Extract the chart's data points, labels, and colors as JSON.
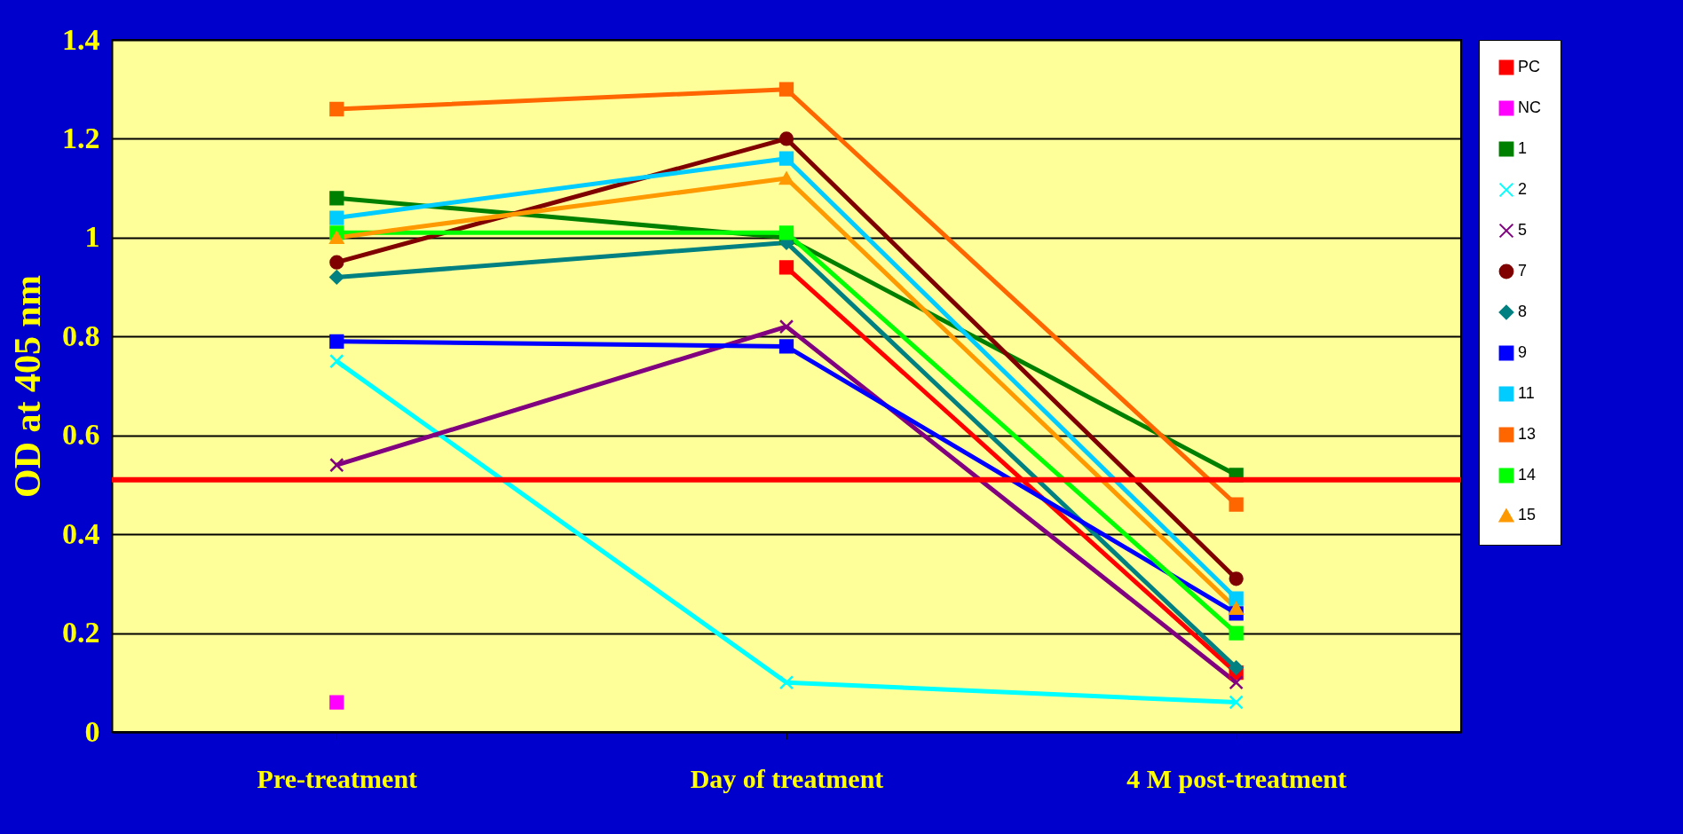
{
  "chart_data": {
    "type": "line",
    "ylabel": "OD at 405 nm",
    "categories": [
      "Pre-treatment",
      "Day of treatment",
      "4 M post-treatment"
    ],
    "ylim": [
      0,
      1.4
    ],
    "yticks": [
      0,
      0.2,
      0.4,
      0.6,
      0.8,
      1,
      1.2,
      1.4
    ],
    "grid": "y",
    "legend": "right",
    "line_style": "solid",
    "series": [
      {
        "name": "PC",
        "color": "#ff0000",
        "marker": "square",
        "values": [
          null,
          0.94,
          0.12
        ]
      },
      {
        "name": "NC",
        "color": "#ff00ff",
        "marker": "square",
        "values": [
          0.06,
          null,
          null
        ]
      },
      {
        "name": "1",
        "color": "#008000",
        "marker": "square",
        "values": [
          1.08,
          1.0,
          0.52
        ]
      },
      {
        "name": "2",
        "color": "#00ffff",
        "marker": "cross",
        "values": [
          0.75,
          0.1,
          0.06
        ]
      },
      {
        "name": "5",
        "color": "#800080",
        "marker": "cross",
        "values": [
          0.54,
          0.82,
          0.1
        ]
      },
      {
        "name": "7",
        "color": "#800000",
        "marker": "circle",
        "values": [
          0.95,
          1.2,
          0.31
        ]
      },
      {
        "name": "8",
        "color": "#008080",
        "marker": "diamond",
        "values": [
          0.92,
          0.99,
          0.13
        ]
      },
      {
        "name": "9",
        "color": "#0000ff",
        "marker": "square",
        "values": [
          0.79,
          0.78,
          0.24
        ]
      },
      {
        "name": "11",
        "color": "#00ccff",
        "marker": "square",
        "values": [
          1.04,
          1.16,
          0.27
        ]
      },
      {
        "name": "13",
        "color": "#ff6600",
        "marker": "square",
        "values": [
          1.26,
          1.3,
          0.46
        ]
      },
      {
        "name": "14",
        "color": "#00ff00",
        "marker": "square",
        "values": [
          1.01,
          1.01,
          0.2
        ]
      },
      {
        "name": "15",
        "color": "#ff9900",
        "marker": "triangle",
        "values": [
          1.0,
          1.12,
          0.25
        ]
      }
    ],
    "ref_lines": [
      {
        "axis": "y",
        "value": 0.51,
        "color": "#ff0000"
      }
    ]
  }
}
